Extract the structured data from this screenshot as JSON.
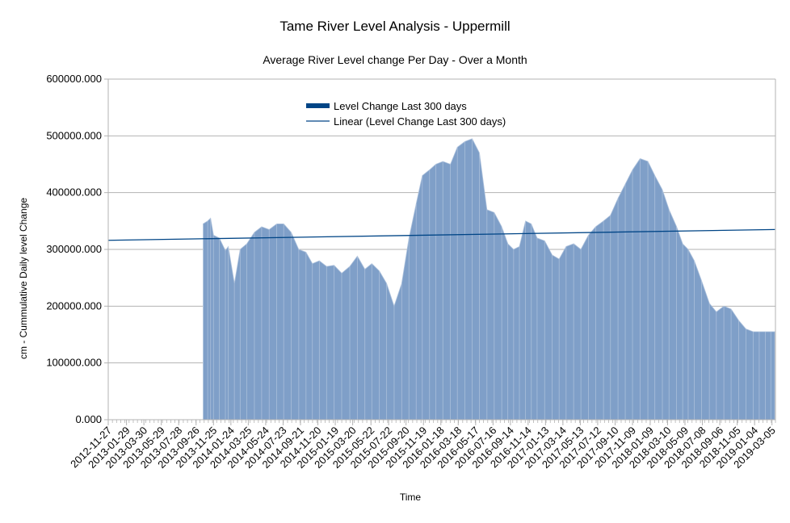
{
  "chart_data": {
    "type": "area",
    "title": "Tame River Level Analysis - Uppermill",
    "subtitle": "Average River Level change Per Day -  Over a Month",
    "xlabel": "Time",
    "ylabel": "cm - Cummulative Daily level Change",
    "ylim": [
      0,
      600000
    ],
    "yticks": [
      "0.000",
      "100000.000",
      "200000.000",
      "300000.000",
      "400000.000",
      "500000.000",
      "600000.000"
    ],
    "grid": true,
    "legend_position": "top-center",
    "colors": {
      "area": "#7f9fc8",
      "area_stroke": "#aec2dc",
      "trend": "#004586",
      "legend_bar": "#004586"
    },
    "xticks": [
      "2012-11-27",
      "2013-01-29",
      "2013-03-30",
      "2013-05-29",
      "2013-07-28",
      "2013-09-26",
      "2013-11-25",
      "2014-01-24",
      "2014-03-25",
      "2014-05-24",
      "2014-07-23",
      "2014-09-21",
      "2014-11-20",
      "2015-01-19",
      "2015-03-20",
      "2015-05-22",
      "2015-07-22",
      "2015-09-20",
      "2015-11-19",
      "2016-01-18",
      "2016-03-18",
      "2016-05-17",
      "2016-07-16",
      "2016-09-14",
      "2016-11-14",
      "2017-01-13",
      "2017-03-14",
      "2017-05-13",
      "2017-07-12",
      "2017-09-10",
      "2017-11-09",
      "2018-01-09",
      "2018-03-10",
      "2018-05-09",
      "2018-07-08",
      "2018-09-06",
      "2018-11-05",
      "2019-01-04",
      "2019-03-05"
    ],
    "series": [
      {
        "name": "Level Change Last 300 days",
        "x": [
          "2013-10-20",
          "2013-11-05",
          "2013-11-15",
          "2013-11-25",
          "2013-12-15",
          "2014-01-05",
          "2014-01-15",
          "2014-02-05",
          "2014-02-25",
          "2014-03-20",
          "2014-04-15",
          "2014-05-10",
          "2014-06-05",
          "2014-07-01",
          "2014-07-25",
          "2014-08-20",
          "2014-09-15",
          "2014-10-10",
          "2014-11-01",
          "2014-11-25",
          "2014-12-20",
          "2015-01-15",
          "2015-02-10",
          "2015-03-10",
          "2015-04-05",
          "2015-05-01",
          "2015-05-25",
          "2015-06-20",
          "2015-07-15",
          "2015-08-10",
          "2015-09-05",
          "2015-09-30",
          "2015-10-25",
          "2015-11-15",
          "2015-12-10",
          "2016-01-01",
          "2016-01-25",
          "2016-02-20",
          "2016-03-15",
          "2016-04-10",
          "2016-05-05",
          "2016-05-30",
          "2016-06-25",
          "2016-07-20",
          "2016-08-15",
          "2016-09-05",
          "2016-09-25",
          "2016-10-15",
          "2016-11-05",
          "2016-11-25",
          "2016-12-15",
          "2017-01-10",
          "2017-02-05",
          "2017-03-01",
          "2017-03-25",
          "2017-04-20",
          "2017-05-15",
          "2017-06-10",
          "2017-07-05",
          "2017-08-01",
          "2017-08-25",
          "2017-09-20",
          "2017-10-15",
          "2017-11-09",
          "2017-12-05",
          "2018-01-01",
          "2018-01-25",
          "2018-02-20",
          "2018-03-15",
          "2018-04-10",
          "2018-05-01",
          "2018-05-20",
          "2018-06-10",
          "2018-07-05",
          "2018-08-01",
          "2018-08-25",
          "2018-09-20",
          "2018-10-15",
          "2018-11-10",
          "2018-12-05",
          "2018-12-30",
          "2019-01-20",
          "2019-02-10",
          "2019-03-01",
          "2019-03-15"
        ],
        "values": [
          345000,
          350000,
          355000,
          325000,
          320000,
          298000,
          305000,
          240000,
          300000,
          310000,
          330000,
          340000,
          335000,
          345000,
          345000,
          330000,
          300000,
          295000,
          275000,
          280000,
          270000,
          272000,
          258000,
          270000,
          288000,
          265000,
          275000,
          262000,
          240000,
          200000,
          240000,
          320000,
          380000,
          430000,
          440000,
          450000,
          455000,
          450000,
          480000,
          490000,
          495000,
          470000,
          370000,
          365000,
          340000,
          310000,
          300000,
          305000,
          350000,
          345000,
          320000,
          315000,
          290000,
          283000,
          305000,
          310000,
          300000,
          325000,
          340000,
          350000,
          360000,
          390000,
          415000,
          440000,
          460000,
          455000,
          430000,
          405000,
          370000,
          340000,
          310000,
          300000,
          280000,
          245000,
          205000,
          190000,
          200000,
          195000,
          175000,
          160000,
          155000,
          155000,
          155000,
          155000,
          155000
        ],
        "style": "area"
      },
      {
        "name": "Linear (Level Change Last 300 days)",
        "x": [
          "2012-11-27",
          "2019-03-15"
        ],
        "values": [
          316000,
          335000
        ],
        "style": "line"
      }
    ]
  }
}
